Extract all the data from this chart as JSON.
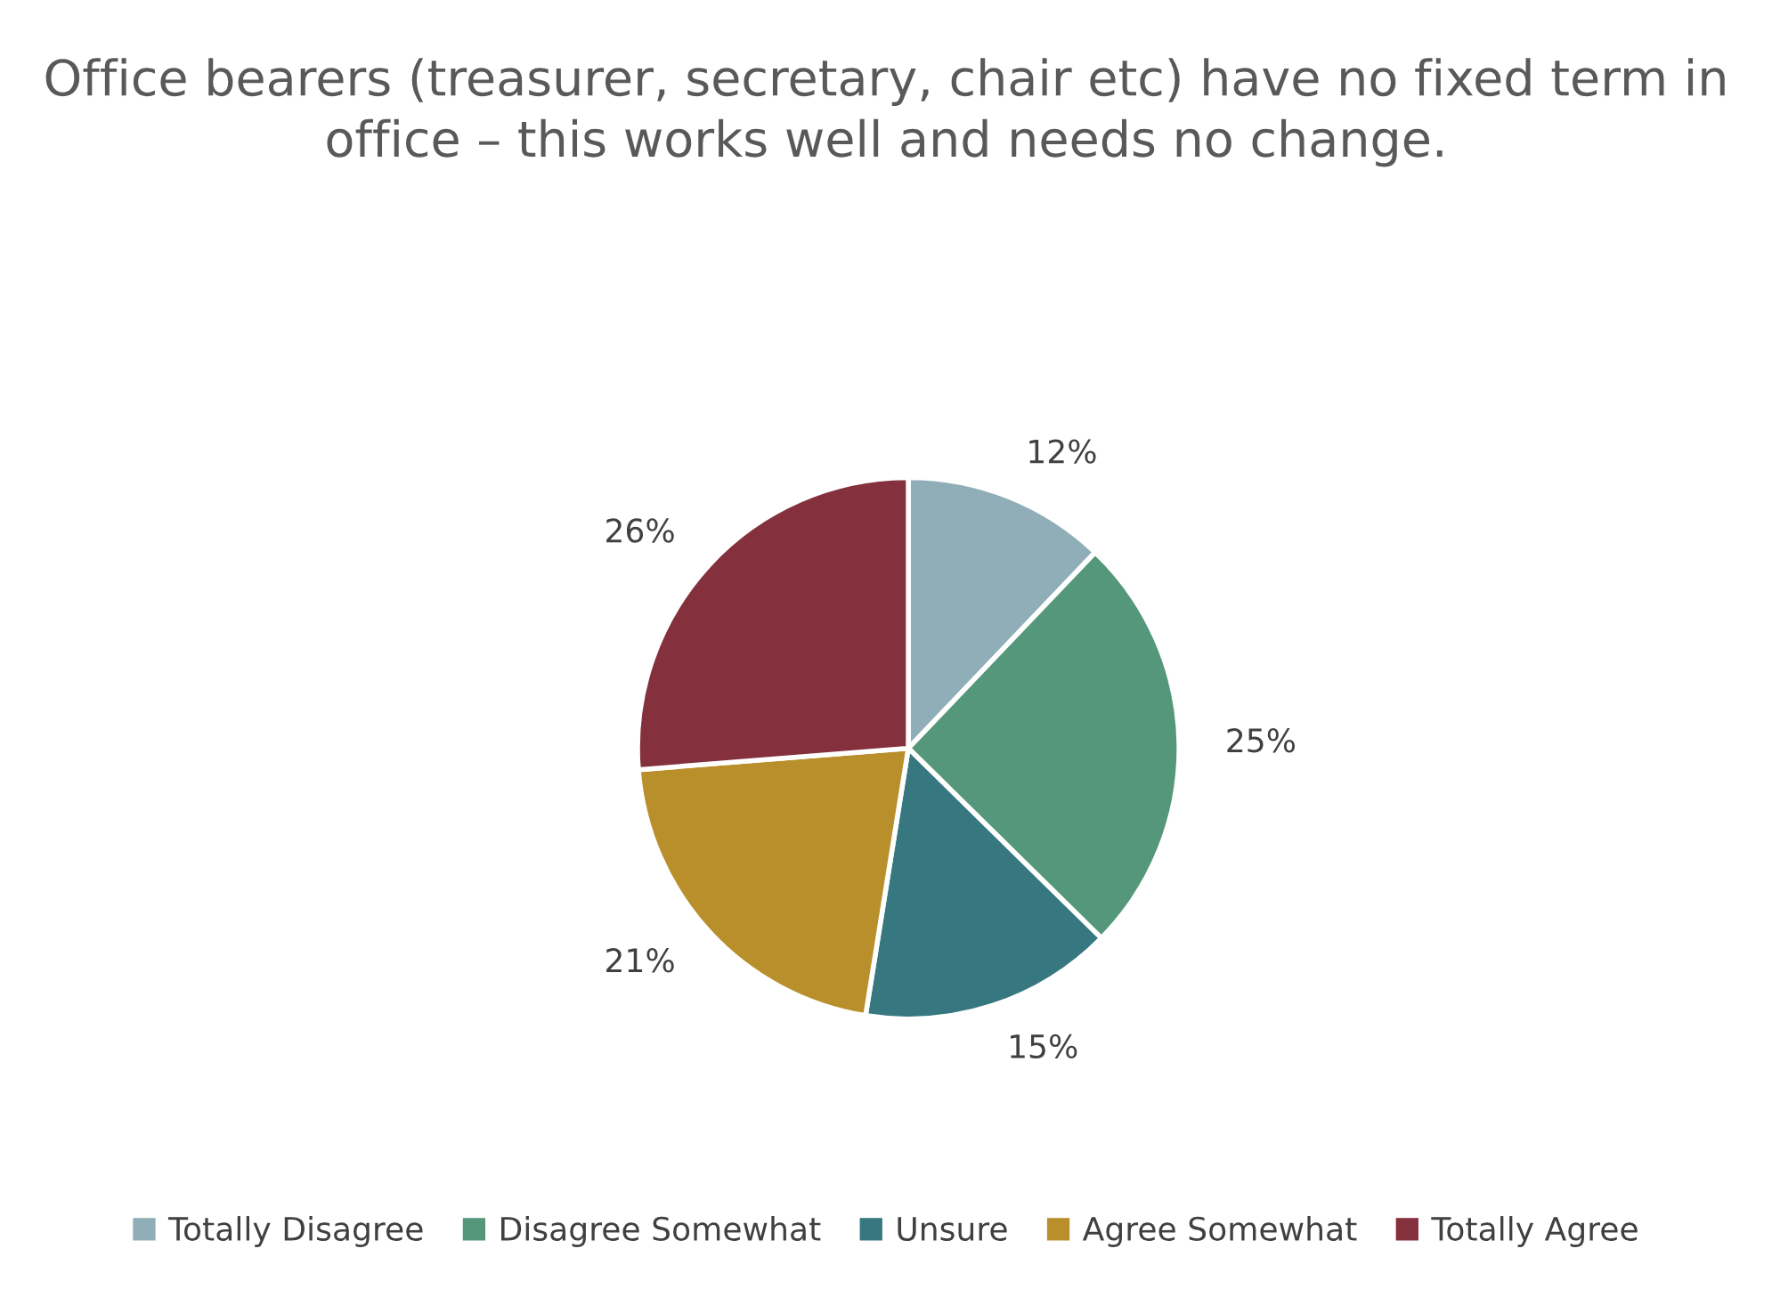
{
  "chart_data": {
    "type": "pie",
    "title": "Office bearers (treasurer, secretary, chair etc) have no fixed term in office – this works well and needs no change.",
    "categories": [
      "Totally Disagree",
      "Disagree Somewhat",
      "Unsure",
      "Agree Somewhat",
      "Totally Agree"
    ],
    "values": [
      12,
      25,
      15,
      21,
      26
    ],
    "colors": [
      "#8faeb8",
      "#54977a",
      "#367780",
      "#b88f2b",
      "#84303d"
    ],
    "value_labels": [
      "12%",
      "25%",
      "15%",
      "21%",
      "26%"
    ],
    "legend": "bottom"
  }
}
